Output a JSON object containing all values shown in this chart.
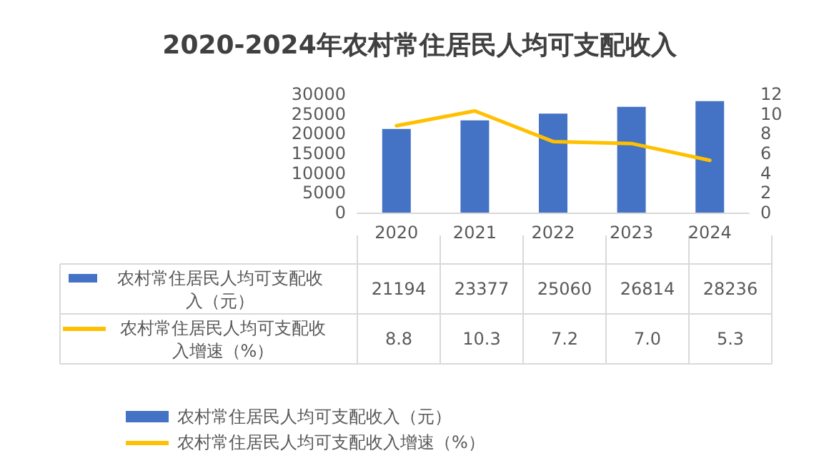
{
  "chart_data": {
    "type": "bar",
    "title": "2020-2024年农村常住居民人均可支配收入",
    "categories": [
      "2020",
      "2021",
      "2022",
      "2023",
      "2024"
    ],
    "series": [
      {
        "name": "农村常住居民人均可支配收入（元）",
        "color": "#4472c4",
        "values": [
          21194,
          23377,
          25060,
          26814,
          28236
        ],
        "value_labels": [
          "21194",
          "23377",
          "25060",
          "26814",
          "28236"
        ]
      },
      {
        "name": "农村常住居民人均可支配收入增速（%）",
        "type": "line",
        "axis": "y2",
        "color": "#ffc000",
        "values": [
          8.8,
          10.3,
          7.2,
          7.0,
          5.3
        ],
        "value_labels": [
          "8.8",
          "10.3",
          "7.2",
          "7.0",
          "5.3"
        ]
      }
    ],
    "ylim": [
      0,
      30000
    ],
    "yticks": [
      0,
      5000,
      10000,
      15000,
      20000,
      25000,
      30000
    ],
    "y2lim": [
      0,
      12
    ],
    "y2ticks": [
      0,
      2,
      4,
      6,
      8,
      10,
      12
    ],
    "grid": false,
    "legend": "bottom",
    "marker": "none",
    "line_style": "solid"
  }
}
